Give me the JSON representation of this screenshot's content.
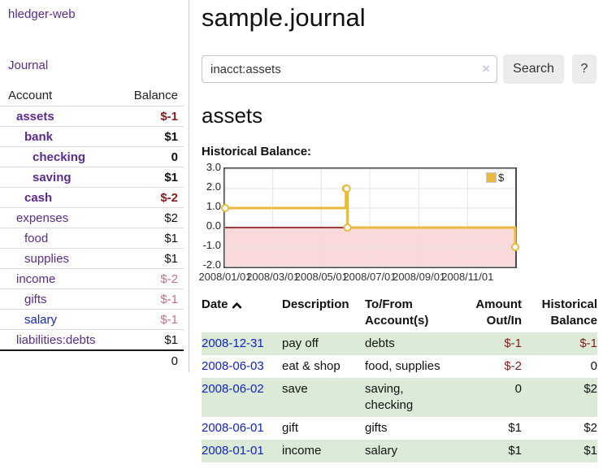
{
  "sidebar": {
    "title": "hledger-web",
    "nav": "Journal",
    "columns": {
      "account": "Account",
      "balance": "Balance"
    },
    "accounts": [
      {
        "label": "assets",
        "balance": "$-1"
      },
      {
        "label": "bank",
        "balance": "$1"
      },
      {
        "label": "checking",
        "balance": "0"
      },
      {
        "label": "saving",
        "balance": "$1"
      },
      {
        "label": "cash",
        "balance": "$-2"
      },
      {
        "label": "expenses",
        "balance": "$2"
      },
      {
        "label": "food",
        "balance": "$1"
      },
      {
        "label": "supplies",
        "balance": "$1"
      },
      {
        "label": "income",
        "balance": "$-2"
      },
      {
        "label": "gifts",
        "balance": "$-1"
      },
      {
        "label": "salary",
        "balance": "$-1"
      },
      {
        "label": "liabilities:debts",
        "balance": "$1"
      }
    ],
    "total": "0"
  },
  "main": {
    "title": "sample.journal",
    "search": {
      "value": "inacct:assets",
      "clear_icon": "×",
      "button_label": "Search",
      "help_label": "?"
    },
    "account_heading": "assets",
    "section_label": "Historical Balance:"
  },
  "chart_data": {
    "type": "line",
    "style": "step",
    "title": "Historical Balance",
    "series": [
      {
        "name": "$",
        "points": [
          [
            "2008-01-01",
            1
          ],
          [
            "2008-06-01",
            2
          ],
          [
            "2008-06-02",
            2
          ],
          [
            "2008-06-03",
            0
          ],
          [
            "2008-12-31",
            -1
          ]
        ]
      }
    ],
    "xlim": [
      "2008-01-01",
      "2008-12-31"
    ],
    "ylim": [
      -2,
      3
    ],
    "x_ticks": [
      "2008/01/01",
      "2008/03/01",
      "2008/05/01",
      "2008/07/01",
      "2008/09/01",
      "2008/11/01"
    ],
    "y_ticks": [
      "3.0",
      "2.0",
      "1.0",
      "0.0",
      "-1.0",
      "-2.0"
    ],
    "legend_position": "top-right",
    "grid": true,
    "colors": {
      "series": "#e9ba3d",
      "negative_region": "#f9d9d9",
      "zero_line": "#8b0000",
      "grid": "#e3e3e3",
      "border": "#4a4a4a"
    }
  },
  "register": {
    "headers": {
      "date": "Date",
      "sort_icon": "chevron-up",
      "description": "Description",
      "accounts": "To/From\nAccount(s)",
      "amount": "Amount\nOut/In",
      "balance": "Historical\nBalance"
    },
    "rows": [
      {
        "date": "2008-12-31",
        "description": "pay off",
        "accounts": "debts",
        "amount": "$-1",
        "balance": "$-1"
      },
      {
        "date": "2008-06-03",
        "description": "eat & shop",
        "accounts": "food, supplies",
        "amount": "$-2",
        "balance": "0"
      },
      {
        "date": "2008-06-02",
        "description": "save",
        "accounts": "saving,\nchecking",
        "amount": "0",
        "balance": "$2"
      },
      {
        "date": "2008-06-01",
        "description": "gift",
        "accounts": "gifts",
        "amount": "$1",
        "balance": "$2"
      },
      {
        "date": "2008-01-01",
        "description": "income",
        "accounts": "salary",
        "amount": "$1",
        "balance": "$1"
      }
    ]
  }
}
